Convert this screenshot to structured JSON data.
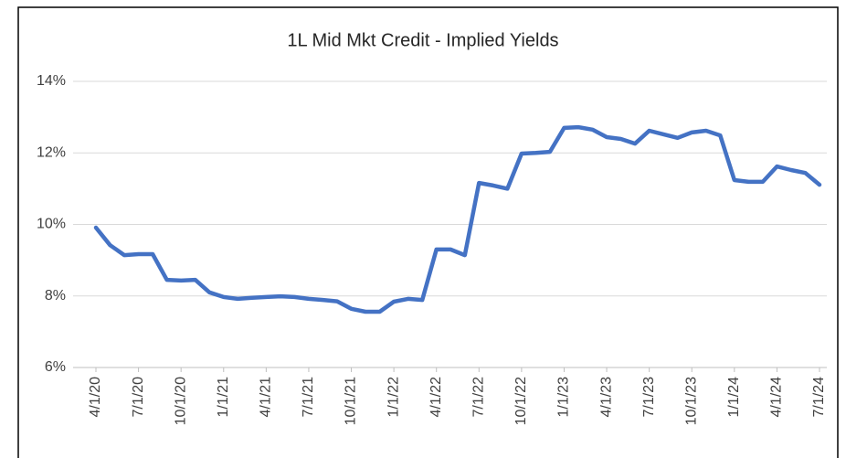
{
  "chart_data": {
    "type": "line",
    "title": "1L Mid Mkt Credit - Implied Yields",
    "categories": [
      "4/1/20",
      null,
      null,
      "7/1/20",
      null,
      null,
      "10/1/20",
      null,
      null,
      "1/1/21",
      null,
      null,
      "4/1/21",
      null,
      null,
      "7/1/21",
      null,
      null,
      "10/1/21",
      null,
      null,
      "1/1/22",
      null,
      null,
      "4/1/22",
      null,
      null,
      "7/1/22",
      null,
      null,
      "10/1/22",
      null,
      null,
      "1/1/23",
      null,
      null,
      "4/1/23",
      null,
      null,
      "7/1/23",
      null,
      null,
      "10/1/23",
      null,
      null,
      "1/1/24",
      null,
      null,
      "4/1/24",
      null,
      null,
      "7/1/24"
    ],
    "series": [
      {
        "name": "Implied Yield",
        "color": "#4472c4",
        "values": [
          9.91,
          9.42,
          9.14,
          9.17,
          9.17,
          8.45,
          8.43,
          8.45,
          8.1,
          7.97,
          7.92,
          7.95,
          7.97,
          7.99,
          7.97,
          7.92,
          7.89,
          7.85,
          7.64,
          7.56,
          7.56,
          7.84,
          7.92,
          7.89,
          9.3,
          9.3,
          9.14,
          11.16,
          11.09,
          11.0,
          11.98,
          12.0,
          12.03,
          12.7,
          12.72,
          12.65,
          12.44,
          12.39,
          12.26,
          12.62,
          12.52,
          12.42,
          12.57,
          12.62,
          12.49,
          11.24,
          11.19,
          11.19,
          11.62,
          11.52,
          11.44,
          11.11
        ]
      }
    ],
    "ylim": [
      6,
      14
    ],
    "yticks": [
      {
        "value": 6,
        "label": "6%"
      },
      {
        "value": 8,
        "label": "8%"
      },
      {
        "value": 10,
        "label": "10%"
      },
      {
        "value": 12,
        "label": "12%"
      },
      {
        "value": 14,
        "label": "14%"
      }
    ],
    "grid": true
  }
}
